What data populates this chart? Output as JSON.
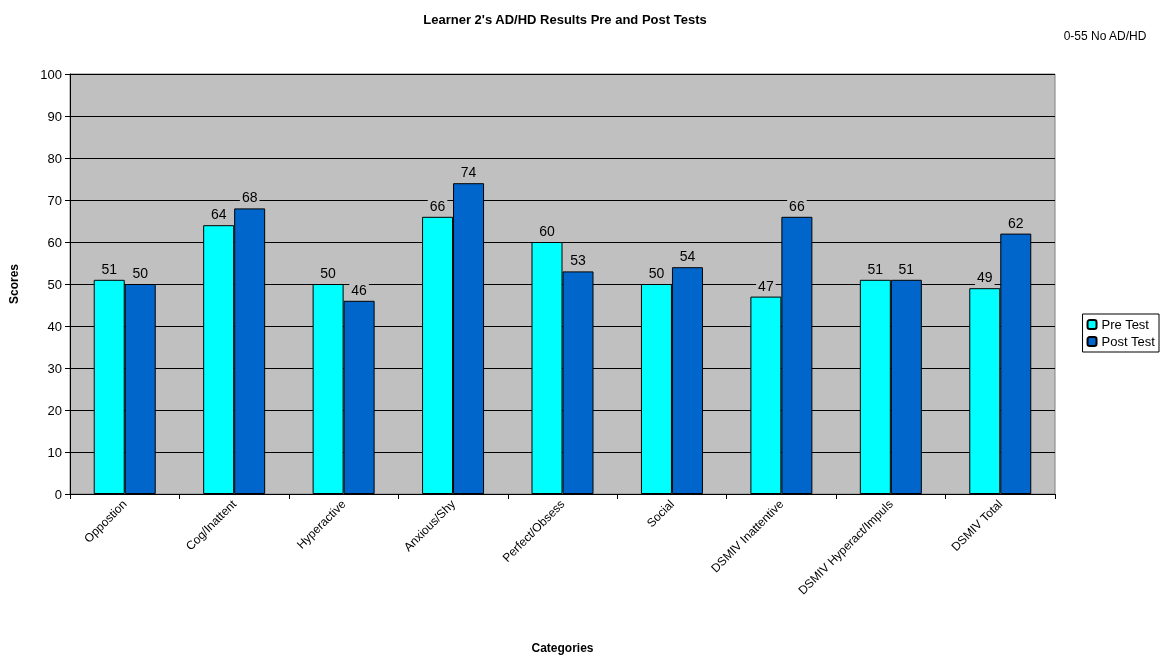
{
  "chart_data": {
    "type": "bar",
    "title": "Learner 2's AD/HD Results Pre and Post Tests",
    "xlabel": "Categories",
    "ylabel": "Scores",
    "annotations": [
      "0-55 No AD/HD"
    ],
    "categories": [
      "Oppostion",
      "Cog/Inattent",
      "Hyperactive",
      "Anxious/Shy",
      "Perfect/Obsess",
      "Social",
      "DSMIV Inattentive",
      "DSMIV Hyperact/Impuls",
      "DSMIV Total"
    ],
    "series": [
      {
        "name": "Pre Test",
        "color": "#00ffff",
        "values": [
          51,
          64,
          50,
          66,
          60,
          50,
          47,
          51,
          49
        ]
      },
      {
        "name": "Post Test",
        "color": "#0066cc",
        "values": [
          50,
          68,
          46,
          74,
          53,
          54,
          66,
          51,
          62
        ]
      }
    ],
    "ylim": [
      0,
      100
    ],
    "yticks": [
      0,
      10,
      20,
      30,
      40,
      50,
      60,
      70,
      80,
      90,
      100
    ],
    "grid": "y",
    "legend": "right",
    "data_labels": true
  }
}
